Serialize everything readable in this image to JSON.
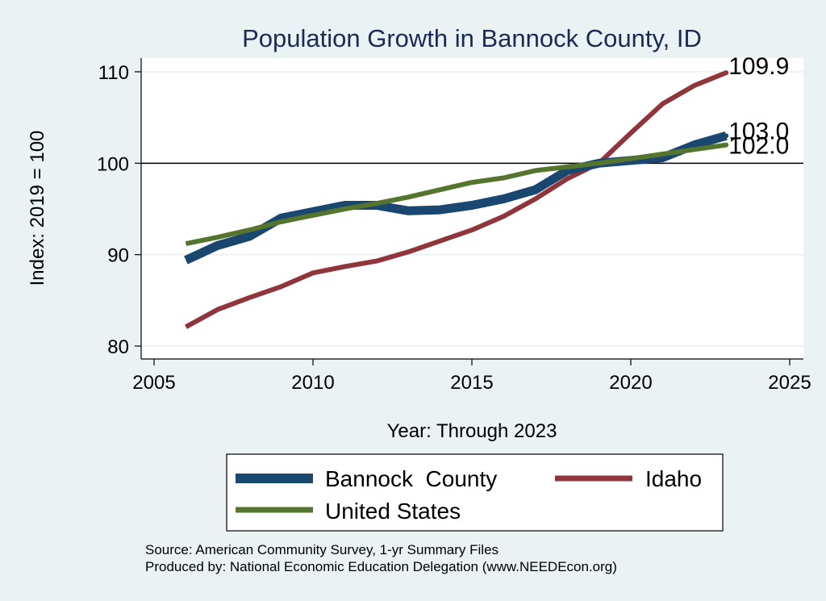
{
  "chart_data": {
    "type": "line",
    "title": "Population Growth in Bannock County, ID",
    "xlabel": "Year: Through 2023",
    "ylabel": "Index: 2019 = 100",
    "xlim": [
      2005,
      2025
    ],
    "ylim": [
      79,
      111.5
    ],
    "xticks": [
      2005,
      2010,
      2015,
      2020,
      2025
    ],
    "yticks": [
      80,
      90,
      100,
      110
    ],
    "reference_line": 100,
    "grid": true,
    "legend_position": "bottom",
    "x": [
      2006,
      2007,
      2008,
      2009,
      2010,
      2011,
      2012,
      2013,
      2014,
      2015,
      2016,
      2017,
      2018,
      2019,
      2020,
      2021,
      2022,
      2023
    ],
    "series": [
      {
        "name": "Bannock  County",
        "color": "#1a476f",
        "width": 11,
        "values": [
          89.4,
          91.0,
          92.0,
          94.0,
          94.7,
          95.4,
          95.4,
          94.8,
          94.9,
          95.4,
          96.1,
          97.1,
          99.2,
          100.0,
          100.3,
          100.6,
          102.0,
          103.0
        ],
        "end_label": "103.0"
      },
      {
        "name": "Idaho",
        "color": "#90353b",
        "width": 6,
        "values": [
          82.1,
          84.0,
          85.3,
          86.5,
          88.0,
          88.7,
          89.3,
          90.3,
          91.5,
          92.7,
          94.2,
          96.1,
          98.3,
          100.0,
          103.3,
          106.5,
          108.5,
          109.9
        ],
        "end_label": "109.9"
      },
      {
        "name": "United States",
        "color": "#55752f",
        "width": 6,
        "values": [
          91.2,
          91.9,
          92.7,
          93.6,
          94.3,
          95.0,
          95.6,
          96.3,
          97.1,
          97.9,
          98.4,
          99.2,
          99.6,
          100.0,
          100.5,
          101.0,
          101.5,
          102.0
        ],
        "end_label": "102.0"
      }
    ]
  },
  "notes": {
    "source": "Source: American Community Survey, 1-yr Summary Files",
    "produced": "Produced by: National Economic Education Delegation (www.NEEDEcon.org)"
  }
}
